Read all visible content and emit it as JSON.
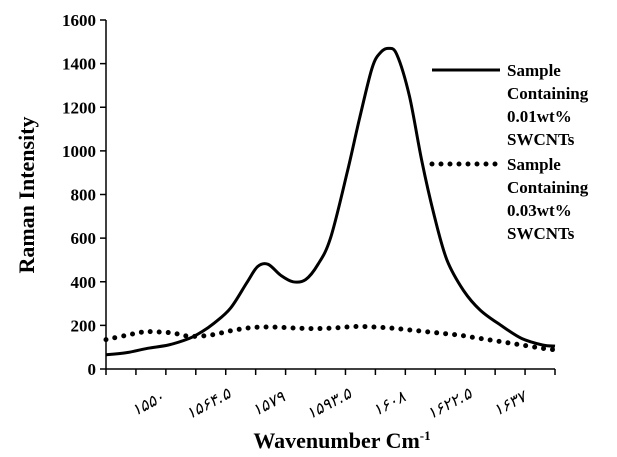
{
  "chart_data": {
    "type": "line",
    "title": "",
    "xlabel": "Wavenumber Cm",
    "xlabel_sup": "-1",
    "ylabel": "Raman Intensity",
    "ylim": [
      0,
      1600
    ],
    "yticks": [
      0,
      200,
      400,
      600,
      800,
      1000,
      1200,
      1400,
      1600
    ],
    "xlim": [
      1540,
      1648
    ],
    "xtick_values": [
      1550,
      1564.5,
      1579,
      1593.5,
      1608,
      1622.5,
      1637
    ],
    "xtick_labels": [
      "۱۵۵۰",
      "۱۵۶۴.۵",
      "۱۵۷۹",
      "۱۵۹۳.۵",
      "۱۶۰۸",
      "۱۶۲۲.۵",
      "۱۶۳۷"
    ],
    "grid": false,
    "legend_position": "right",
    "series": [
      {
        "name": "Sample Containing 0.01wt% SWCNTs",
        "style": "solid",
        "color": "#000000",
        "x": [
          1540,
          1545,
          1550,
          1555,
          1560,
          1563,
          1566,
          1570,
          1574,
          1576.5,
          1579,
          1582,
          1585,
          1588,
          1591,
          1594,
          1598,
          1601,
          1604,
          1606,
          1608,
          1610,
          1613,
          1616,
          1619,
          1622,
          1626,
          1630,
          1635,
          1640,
          1645,
          1648
        ],
        "y": [
          65,
          75,
          95,
          110,
          140,
          170,
          210,
          280,
          400,
          470,
          480,
          430,
          400,
          410,
          480,
          600,
          900,
          1150,
          1380,
          1450,
          1470,
          1440,
          1250,
          950,
          700,
          500,
          360,
          270,
          200,
          140,
          110,
          105
        ]
      },
      {
        "name": "Sample Containing 0.03wt% SWCNTs",
        "style": "dotted",
        "color": "#000000",
        "x": [
          1540,
          1545,
          1549,
          1552,
          1556,
          1560,
          1565,
          1570,
          1575,
          1580,
          1585,
          1590,
          1595,
          1600,
          1605,
          1610,
          1615,
          1620,
          1625,
          1630,
          1635,
          1640,
          1645,
          1648
        ],
        "y": [
          135,
          155,
          170,
          170,
          165,
          150,
          155,
          175,
          190,
          192,
          188,
          185,
          188,
          195,
          192,
          185,
          175,
          165,
          155,
          140,
          125,
          110,
          95,
          88
        ]
      }
    ],
    "legend": [
      {
        "lines": [
          "Sample",
          "Containing",
          "0.01wt%",
          "SWCNTs"
        ]
      },
      {
        "lines": [
          "Sample",
          "Containing",
          "0.03wt%",
          "SWCNTs"
        ]
      }
    ]
  }
}
